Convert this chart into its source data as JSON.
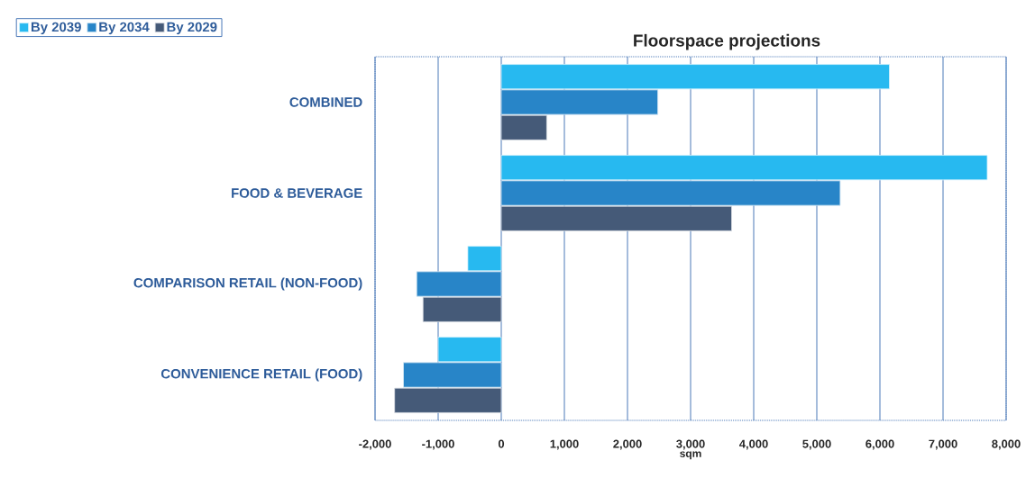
{
  "chart_data": {
    "type": "bar",
    "orientation": "horizontal",
    "title": "Floorspace projections",
    "xlabel": "sqm",
    "categories": [
      "COMBINED",
      "FOOD & BEVERAGE",
      "COMPARISON RETAIL (NON-FOOD)",
      "CONVENIENCE RETAIL (FOOD)"
    ],
    "series": [
      {
        "name": "By 2039",
        "color": "#27b9f0",
        "values": [
          6150,
          7700,
          -530,
          -1000
        ]
      },
      {
        "name": "By 2034",
        "color": "#2885c8",
        "values": [
          2480,
          5370,
          -1340,
          -1550
        ]
      },
      {
        "name": "By 2029",
        "color": "#455a78",
        "values": [
          720,
          3650,
          -1240,
          -1690
        ]
      }
    ],
    "xlim": [
      -2000,
      8000
    ],
    "xticks": [
      {
        "value": -2000,
        "label": "-2,000"
      },
      {
        "value": -1000,
        "label": "-1,000"
      },
      0,
      {
        "value": 1000,
        "label": "1,000"
      },
      {
        "value": 2000,
        "label": "2,000"
      },
      {
        "value": 3000,
        "label": "3,000"
      },
      {
        "value": 4000,
        "label": "4,000"
      },
      {
        "value": 5000,
        "label": "5,000"
      },
      {
        "value": 6000,
        "label": "6,000"
      },
      {
        "value": 7000,
        "label": "7,000"
      },
      {
        "value": 8000,
        "label": "8,000"
      }
    ],
    "grid": "x",
    "legend": "top left"
  }
}
